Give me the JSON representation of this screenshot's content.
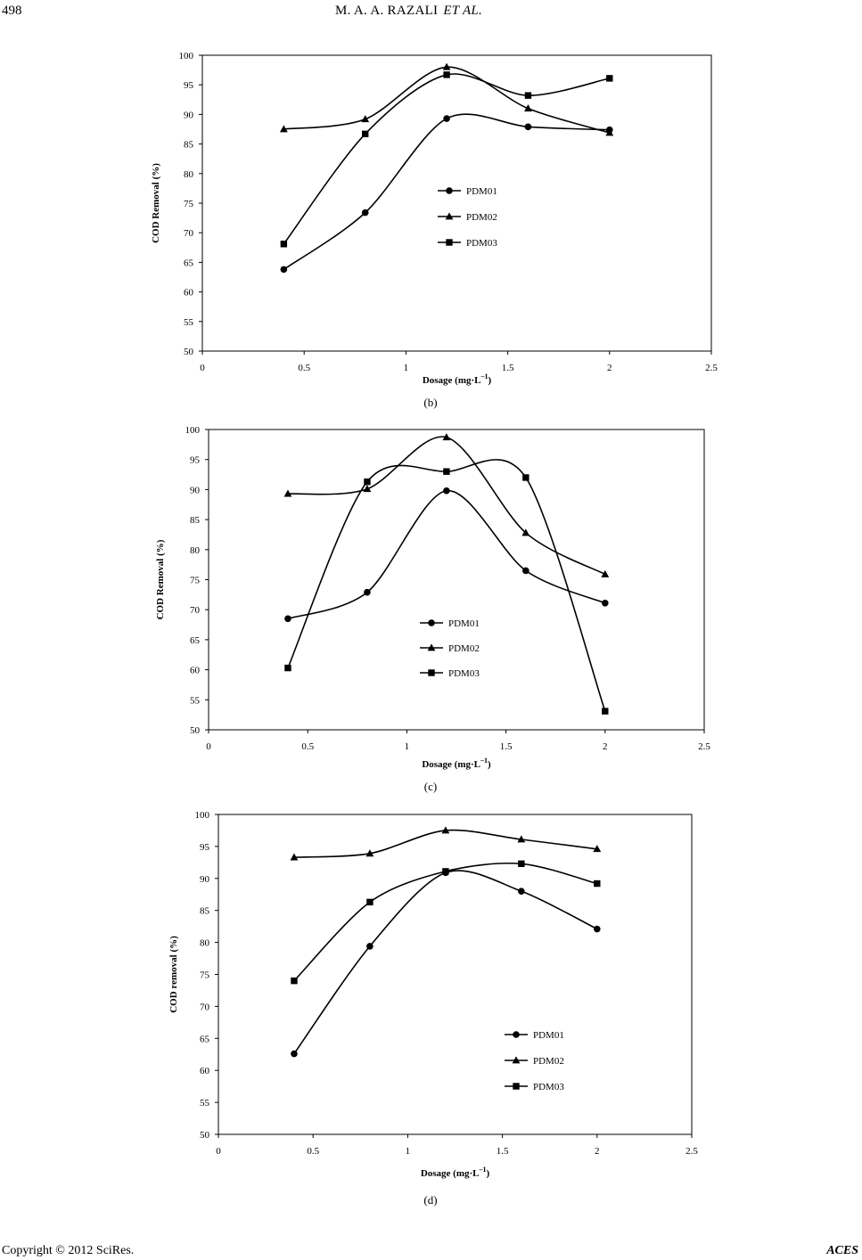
{
  "header": {
    "page_number": "498",
    "authors": "M. A. A. RAZALI",
    "authors_suffix": "ET    AL."
  },
  "footer": {
    "copyright": "Copyright © 2012 SciRes.",
    "journal": "ACES"
  },
  "colors": {
    "line": "#000000",
    "background": "#ffffff"
  },
  "chart_data": [
    {
      "type": "line",
      "caption": "(b)",
      "xlabel": "Dosage (mg·L",
      "xlabel_sup": "–1",
      "xlabel_end": ")",
      "ylabel": "COD  Removal (%)",
      "xlim": [
        0,
        2.5
      ],
      "ylim": [
        50,
        100
      ],
      "xticks": [
        0,
        0.5,
        1,
        1.5,
        2,
        2.5
      ],
      "xtick_labels": [
        "0",
        "0.5",
        "1",
        "1.5",
        "2",
        "2.5"
      ],
      "yticks": [
        50,
        55,
        60,
        65,
        70,
        75,
        80,
        85,
        90,
        95,
        100
      ],
      "legend_position": "center",
      "x": [
        0.4,
        0.8,
        1.2,
        1.6,
        2.0
      ],
      "series": [
        {
          "name": "PDM01",
          "marker": "circle",
          "values": [
            63.8,
            73.4,
            89.3,
            87.9,
            87.4
          ]
        },
        {
          "name": "PDM02",
          "marker": "triangle",
          "values": [
            87.5,
            89.2,
            98.0,
            91.0,
            86.9
          ]
        },
        {
          "name": "PDM03",
          "marker": "square",
          "values": [
            68.1,
            86.7,
            96.7,
            93.2,
            96.1
          ]
        }
      ]
    },
    {
      "type": "line",
      "caption": "(c)",
      "xlabel": "Dosage (mg·L",
      "xlabel_sup": "–1",
      "xlabel_end": ")",
      "ylabel": "COD Removal (%)",
      "xlim": [
        0,
        2.5
      ],
      "ylim": [
        50,
        100
      ],
      "xticks": [
        0,
        0.5,
        1,
        1.5,
        2,
        2.5
      ],
      "xtick_labels": [
        "0",
        "0.5",
        "1",
        "1.5",
        "2",
        "2.5"
      ],
      "yticks": [
        50,
        55,
        60,
        65,
        70,
        75,
        80,
        85,
        90,
        95,
        100
      ],
      "legend_position": "lower-center",
      "x": [
        0.4,
        0.8,
        1.2,
        1.6,
        2.0
      ],
      "series": [
        {
          "name": "PDM01",
          "marker": "circle",
          "values": [
            68.5,
            72.9,
            89.8,
            76.5,
            71.1
          ]
        },
        {
          "name": "PDM02",
          "marker": "triangle",
          "values": [
            89.3,
            90.1,
            98.7,
            82.8,
            75.9
          ]
        },
        {
          "name": "PDM03",
          "marker": "square",
          "values": [
            60.3,
            91.3,
            93.0,
            92.0,
            53.1
          ]
        }
      ]
    },
    {
      "type": "line",
      "caption": "(d)",
      "xlabel": "Dosage (mg·L",
      "xlabel_sup": "–1",
      "xlabel_end": ")",
      "ylabel": "COD removal (%)",
      "xlim": [
        0,
        2.5
      ],
      "ylim": [
        50,
        100
      ],
      "xticks": [
        0,
        0.5,
        1,
        1.5,
        2,
        2.5
      ],
      "xtick_labels": [
        "0",
        "0.5",
        "1",
        "1.5",
        "2",
        "2.5"
      ],
      "yticks": [
        50,
        55,
        60,
        65,
        70,
        75,
        80,
        85,
        90,
        95,
        100
      ],
      "legend_position": "lower-right",
      "x": [
        0.4,
        0.8,
        1.2,
        1.6,
        2.0
      ],
      "series": [
        {
          "name": "PDM01",
          "marker": "circle",
          "values": [
            62.6,
            79.4,
            90.9,
            88.0,
            82.1
          ]
        },
        {
          "name": "PDM02",
          "marker": "triangle",
          "values": [
            93.3,
            93.9,
            97.5,
            96.1,
            94.6
          ]
        },
        {
          "name": "PDM03",
          "marker": "square",
          "values": [
            74.0,
            86.3,
            91.1,
            92.3,
            89.2
          ]
        }
      ]
    }
  ]
}
